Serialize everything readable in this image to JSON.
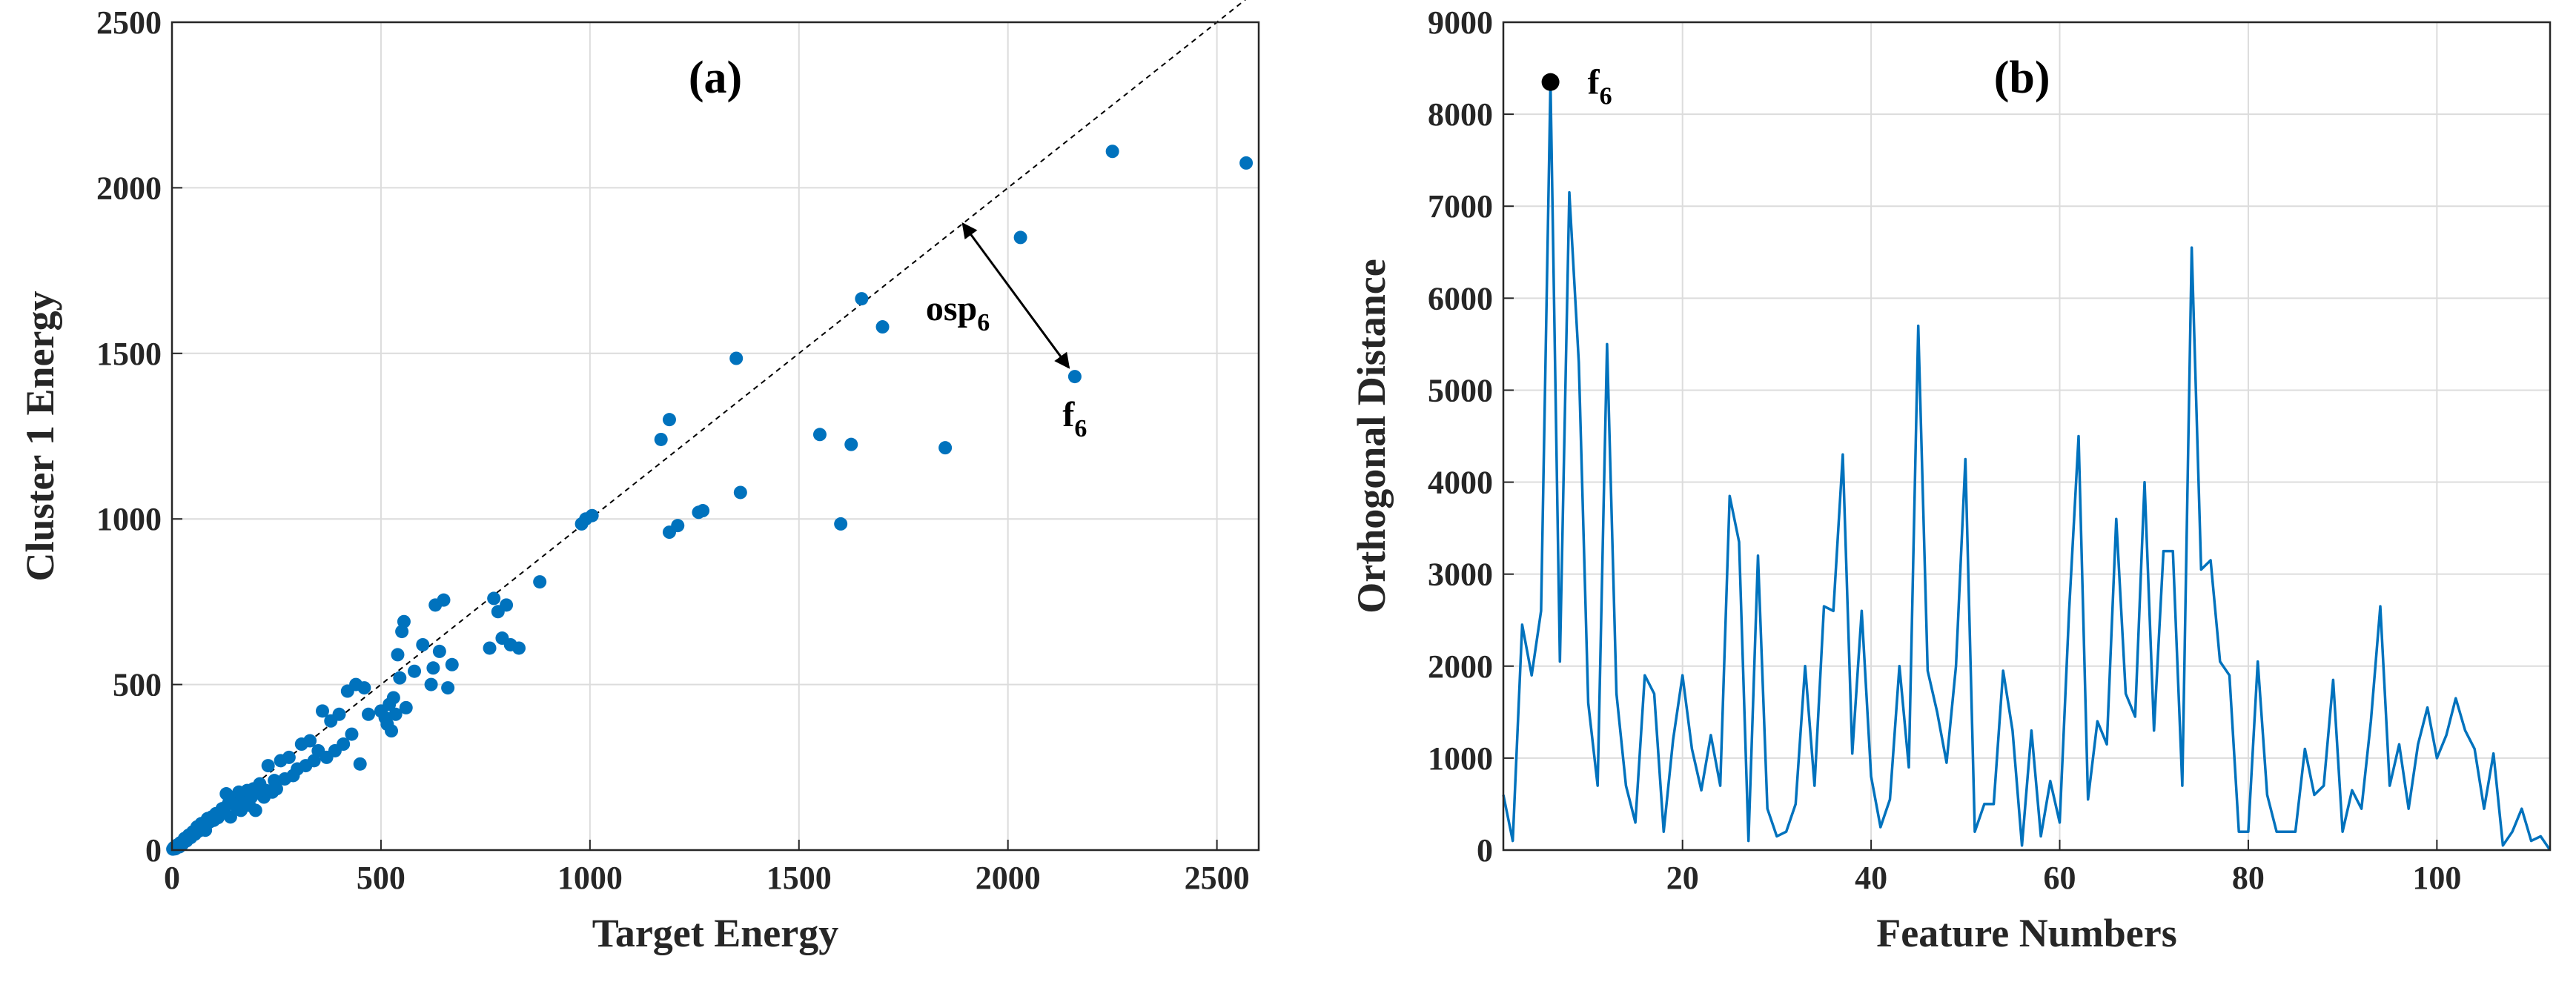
{
  "colors": {
    "series": "#0072BD",
    "grid": "#dcdcdc",
    "axis": "#262626",
    "annotation": "#000000"
  },
  "chart_data": [
    {
      "panel_label": "(a)",
      "type": "scatter",
      "xlabel": "Target Energy",
      "ylabel": "Cluster 1 Energy",
      "xlim": [
        0,
        2600
      ],
      "ylim": [
        0,
        2500
      ],
      "xticks": [
        0,
        500,
        1000,
        1500,
        2000,
        2500
      ],
      "yticks": [
        0,
        500,
        1000,
        1500,
        2000,
        2500
      ],
      "grid": true,
      "reference_line": {
        "style": "dashed",
        "from": [
          0,
          0
        ],
        "to": [
          2600,
          2600
        ]
      },
      "points": [
        [
          2,
          3
        ],
        [
          5,
          8
        ],
        [
          8,
          4
        ],
        [
          12,
          15
        ],
        [
          18,
          10
        ],
        [
          20,
          22
        ],
        [
          25,
          18
        ],
        [
          30,
          35
        ],
        [
          35,
          28
        ],
        [
          40,
          45
        ],
        [
          45,
          38
        ],
        [
          50,
          55
        ],
        [
          55,
          48
        ],
        [
          60,
          70
        ],
        [
          65,
          58
        ],
        [
          70,
          80
        ],
        [
          75,
          72
        ],
        [
          80,
          60
        ],
        [
          85,
          95
        ],
        [
          90,
          85
        ],
        [
          95,
          100
        ],
        [
          100,
          90
        ],
        [
          105,
          110
        ],
        [
          110,
          98
        ],
        [
          120,
          125
        ],
        [
          125,
          115
        ],
        [
          130,
          170
        ],
        [
          135,
          140
        ],
        [
          140,
          100
        ],
        [
          150,
          150
        ],
        [
          155,
          130
        ],
        [
          160,
          175
        ],
        [
          165,
          120
        ],
        [
          170,
          165
        ],
        [
          175,
          145
        ],
        [
          180,
          180
        ],
        [
          185,
          135
        ],
        [
          190,
          160
        ],
        [
          195,
          185
        ],
        [
          200,
          120
        ],
        [
          205,
          175
        ],
        [
          210,
          200
        ],
        [
          220,
          160
        ],
        [
          225,
          180
        ],
        [
          230,
          255
        ],
        [
          240,
          175
        ],
        [
          245,
          210
        ],
        [
          250,
          185
        ],
        [
          260,
          270
        ],
        [
          270,
          215
        ],
        [
          280,
          280
        ],
        [
          290,
          225
        ],
        [
          300,
          245
        ],
        [
          310,
          320
        ],
        [
          320,
          255
        ],
        [
          330,
          330
        ],
        [
          340,
          270
        ],
        [
          350,
          300
        ],
        [
          360,
          420
        ],
        [
          370,
          280
        ],
        [
          380,
          390
        ],
        [
          390,
          300
        ],
        [
          400,
          410
        ],
        [
          410,
          320
        ],
        [
          420,
          480
        ],
        [
          430,
          350
        ],
        [
          440,
          500
        ],
        [
          450,
          260
        ],
        [
          460,
          490
        ],
        [
          470,
          410
        ],
        [
          500,
          420
        ],
        [
          510,
          400
        ],
        [
          515,
          380
        ],
        [
          520,
          440
        ],
        [
          525,
          360
        ],
        [
          530,
          460
        ],
        [
          535,
          410
        ],
        [
          540,
          590
        ],
        [
          545,
          520
        ],
        [
          550,
          660
        ],
        [
          555,
          690
        ],
        [
          560,
          430
        ],
        [
          580,
          540
        ],
        [
          600,
          620
        ],
        [
          620,
          500
        ],
        [
          625,
          550
        ],
        [
          630,
          740
        ],
        [
          640,
          600
        ],
        [
          650,
          755
        ],
        [
          660,
          490
        ],
        [
          670,
          560
        ],
        [
          760,
          610
        ],
        [
          770,
          760
        ],
        [
          780,
          720
        ],
        [
          790,
          640
        ],
        [
          800,
          740
        ],
        [
          810,
          620
        ],
        [
          830,
          610
        ],
        [
          880,
          810
        ],
        [
          980,
          985
        ],
        [
          990,
          1000
        ],
        [
          1005,
          1010
        ],
        [
          1170,
          1240
        ],
        [
          1190,
          1300
        ],
        [
          1190,
          960
        ],
        [
          1210,
          980
        ],
        [
          1260,
          1020
        ],
        [
          1270,
          1025
        ],
        [
          1350,
          1485
        ],
        [
          1360,
          1080
        ],
        [
          1550,
          1255
        ],
        [
          1600,
          985
        ],
        [
          1625,
          1225
        ],
        [
          1650,
          1665
        ],
        [
          1700,
          1580
        ],
        [
          1850,
          1215
        ],
        [
          2030,
          1850
        ],
        [
          2160,
          1430
        ],
        [
          2250,
          2110
        ],
        [
          2570,
          2075
        ]
      ],
      "annotation": {
        "arrow_label": "osp",
        "arrow_sub": "6",
        "point_label": "f",
        "point_sub": "6",
        "point": [
          2160,
          1430
        ],
        "arrow_to": [
          1892,
          1892
        ]
      }
    },
    {
      "panel_label": "(b)",
      "type": "line",
      "xlabel": "Feature Numbers",
      "ylabel": "Orthogonal Distance",
      "xlim": [
        1,
        112
      ],
      "ylim": [
        0,
        9000
      ],
      "xticks": [
        20,
        40,
        60,
        80,
        100
      ],
      "yticks": [
        0,
        1000,
        2000,
        3000,
        4000,
        5000,
        6000,
        7000,
        8000,
        9000
      ],
      "grid": true,
      "x": [
        1,
        2,
        3,
        4,
        5,
        6,
        7,
        8,
        9,
        10,
        11,
        12,
        13,
        14,
        15,
        16,
        17,
        18,
        19,
        20,
        21,
        22,
        23,
        24,
        25,
        26,
        27,
        28,
        29,
        30,
        31,
        32,
        33,
        34,
        35,
        36,
        37,
        38,
        39,
        40,
        41,
        42,
        43,
        44,
        45,
        46,
        47,
        48,
        49,
        50,
        51,
        52,
        53,
        54,
        55,
        56,
        57,
        58,
        59,
        60,
        61,
        62,
        63,
        64,
        65,
        66,
        67,
        68,
        69,
        70,
        71,
        72,
        73,
        74,
        75,
        76,
        77,
        78,
        79,
        80,
        81,
        82,
        83,
        84,
        85,
        86,
        87,
        88,
        89,
        90,
        91,
        92,
        93,
        94,
        95,
        96,
        97,
        98,
        99,
        100,
        101,
        102,
        103,
        104,
        105,
        106,
        107,
        108,
        109,
        110,
        111,
        112
      ],
      "y": [
        600,
        100,
        2450,
        1900,
        2600,
        8350,
        2050,
        7150,
        5300,
        1600,
        700,
        5500,
        1700,
        700,
        300,
        1900,
        1700,
        200,
        1200,
        1900,
        1100,
        650,
        1250,
        700,
        3850,
        3350,
        100,
        3200,
        450,
        150,
        200,
        500,
        2000,
        700,
        2650,
        2600,
        4300,
        1050,
        2600,
        800,
        250,
        550,
        2000,
        900,
        5700,
        1950,
        1500,
        950,
        2000,
        4250,
        200,
        500,
        500,
        1950,
        1300,
        50,
        1300,
        150,
        750,
        300,
        2600,
        4500,
        550,
        1400,
        1150,
        3600,
        1700,
        1450,
        4000,
        1300,
        3250,
        3250,
        700,
        6550,
        3050,
        3150,
        2050,
        1900,
        200,
        200,
        2050,
        600,
        200,
        200,
        200,
        1100,
        600,
        700,
        1850,
        200,
        650,
        450,
        1400,
        2650,
        700,
        1150,
        450,
        1150,
        1550,
        1000,
        1250,
        1650,
        1300,
        1100,
        450,
        1050,
        50,
        200,
        450,
        100,
        150,
        0
      ],
      "marker": {
        "x": 6,
        "y": 8350,
        "label": "f",
        "sub": "6"
      }
    }
  ]
}
